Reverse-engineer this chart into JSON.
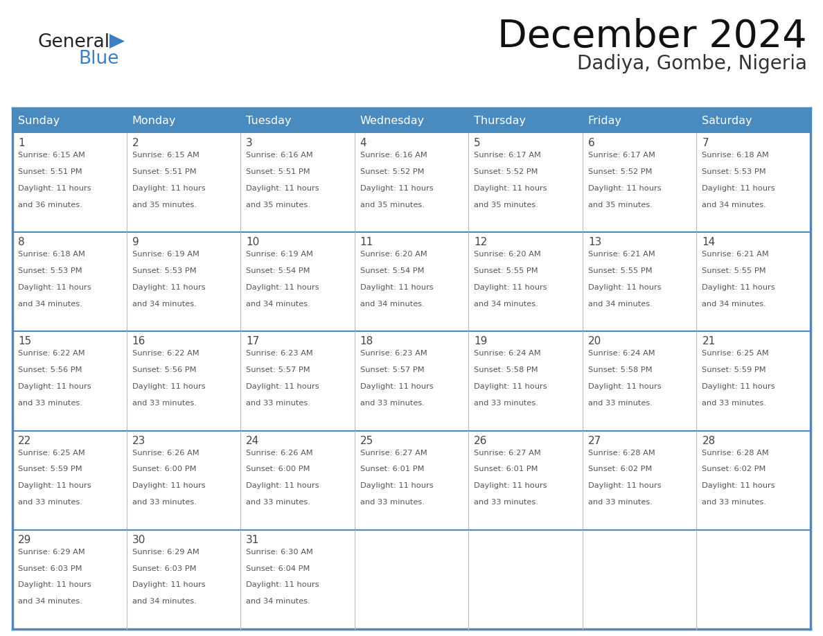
{
  "title": "December 2024",
  "subtitle": "Dadiya, Gombe, Nigeria",
  "header_bg_color": "#4a8bbf",
  "header_text_color": "#ffffff",
  "grid_color": "#4a8bbf",
  "cell_text_color": "#555555",
  "day_number_color": "#444444",
  "days_of_week": [
    "Sunday",
    "Monday",
    "Tuesday",
    "Wednesday",
    "Thursday",
    "Friday",
    "Saturday"
  ],
  "weeks": [
    [
      {
        "day": 1,
        "sunrise": "6:15 AM",
        "sunset": "5:51 PM",
        "daylight": "11 hours and 36 minutes."
      },
      {
        "day": 2,
        "sunrise": "6:15 AM",
        "sunset": "5:51 PM",
        "daylight": "11 hours and 35 minutes."
      },
      {
        "day": 3,
        "sunrise": "6:16 AM",
        "sunset": "5:51 PM",
        "daylight": "11 hours and 35 minutes."
      },
      {
        "day": 4,
        "sunrise": "6:16 AM",
        "sunset": "5:52 PM",
        "daylight": "11 hours and 35 minutes."
      },
      {
        "day": 5,
        "sunrise": "6:17 AM",
        "sunset": "5:52 PM",
        "daylight": "11 hours and 35 minutes."
      },
      {
        "day": 6,
        "sunrise": "6:17 AM",
        "sunset": "5:52 PM",
        "daylight": "11 hours and 35 minutes."
      },
      {
        "day": 7,
        "sunrise": "6:18 AM",
        "sunset": "5:53 PM",
        "daylight": "11 hours and 34 minutes."
      }
    ],
    [
      {
        "day": 8,
        "sunrise": "6:18 AM",
        "sunset": "5:53 PM",
        "daylight": "11 hours and 34 minutes."
      },
      {
        "day": 9,
        "sunrise": "6:19 AM",
        "sunset": "5:53 PM",
        "daylight": "11 hours and 34 minutes."
      },
      {
        "day": 10,
        "sunrise": "6:19 AM",
        "sunset": "5:54 PM",
        "daylight": "11 hours and 34 minutes."
      },
      {
        "day": 11,
        "sunrise": "6:20 AM",
        "sunset": "5:54 PM",
        "daylight": "11 hours and 34 minutes."
      },
      {
        "day": 12,
        "sunrise": "6:20 AM",
        "sunset": "5:55 PM",
        "daylight": "11 hours and 34 minutes."
      },
      {
        "day": 13,
        "sunrise": "6:21 AM",
        "sunset": "5:55 PM",
        "daylight": "11 hours and 34 minutes."
      },
      {
        "day": 14,
        "sunrise": "6:21 AM",
        "sunset": "5:55 PM",
        "daylight": "11 hours and 34 minutes."
      }
    ],
    [
      {
        "day": 15,
        "sunrise": "6:22 AM",
        "sunset": "5:56 PM",
        "daylight": "11 hours and 33 minutes."
      },
      {
        "day": 16,
        "sunrise": "6:22 AM",
        "sunset": "5:56 PM",
        "daylight": "11 hours and 33 minutes."
      },
      {
        "day": 17,
        "sunrise": "6:23 AM",
        "sunset": "5:57 PM",
        "daylight": "11 hours and 33 minutes."
      },
      {
        "day": 18,
        "sunrise": "6:23 AM",
        "sunset": "5:57 PM",
        "daylight": "11 hours and 33 minutes."
      },
      {
        "day": 19,
        "sunrise": "6:24 AM",
        "sunset": "5:58 PM",
        "daylight": "11 hours and 33 minutes."
      },
      {
        "day": 20,
        "sunrise": "6:24 AM",
        "sunset": "5:58 PM",
        "daylight": "11 hours and 33 minutes."
      },
      {
        "day": 21,
        "sunrise": "6:25 AM",
        "sunset": "5:59 PM",
        "daylight": "11 hours and 33 minutes."
      }
    ],
    [
      {
        "day": 22,
        "sunrise": "6:25 AM",
        "sunset": "5:59 PM",
        "daylight": "11 hours and 33 minutes."
      },
      {
        "day": 23,
        "sunrise": "6:26 AM",
        "sunset": "6:00 PM",
        "daylight": "11 hours and 33 minutes."
      },
      {
        "day": 24,
        "sunrise": "6:26 AM",
        "sunset": "6:00 PM",
        "daylight": "11 hours and 33 minutes."
      },
      {
        "day": 25,
        "sunrise": "6:27 AM",
        "sunset": "6:01 PM",
        "daylight": "11 hours and 33 minutes."
      },
      {
        "day": 26,
        "sunrise": "6:27 AM",
        "sunset": "6:01 PM",
        "daylight": "11 hours and 33 minutes."
      },
      {
        "day": 27,
        "sunrise": "6:28 AM",
        "sunset": "6:02 PM",
        "daylight": "11 hours and 33 minutes."
      },
      {
        "day": 28,
        "sunrise": "6:28 AM",
        "sunset": "6:02 PM",
        "daylight": "11 hours and 33 minutes."
      }
    ],
    [
      {
        "day": 29,
        "sunrise": "6:29 AM",
        "sunset": "6:03 PM",
        "daylight": "11 hours and 34 minutes."
      },
      {
        "day": 30,
        "sunrise": "6:29 AM",
        "sunset": "6:03 PM",
        "daylight": "11 hours and 34 minutes."
      },
      {
        "day": 31,
        "sunrise": "6:30 AM",
        "sunset": "6:04 PM",
        "daylight": "11 hours and 34 minutes."
      },
      null,
      null,
      null,
      null
    ]
  ],
  "logo_general_color": "#222222",
  "logo_blue_color": "#3a7fc1",
  "logo_triangle_color": "#3a7fc1"
}
